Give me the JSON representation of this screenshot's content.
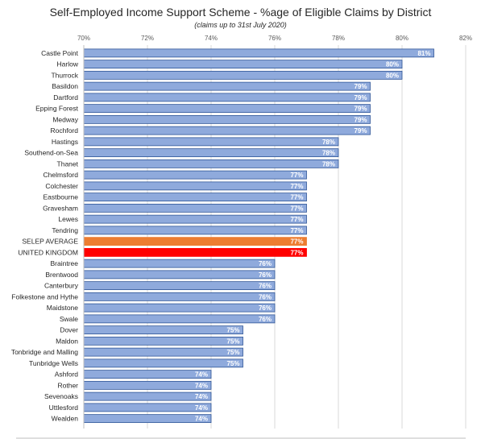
{
  "chart_data": {
    "type": "bar",
    "orientation": "horizontal",
    "title": "Self-Employed Income Support Scheme - %age of Eligible Claims by District",
    "subtitle": "(claims up to 31st July 2020)",
    "xlim": [
      70,
      82
    ],
    "xticks": [
      "70%",
      "72%",
      "74%",
      "76%",
      "78%",
      "80%",
      "82%"
    ],
    "grid": true,
    "legend": "none",
    "categories": [
      "Castle Point",
      "Harlow",
      "Thurrock",
      "Basildon",
      "Dartford",
      "Epping Forest",
      "Medway",
      "Rochford",
      "Hastings",
      "Southend-on-Sea",
      "Thanet",
      "Chelmsford",
      "Colchester",
      "Eastbourne",
      "Gravesham",
      "Lewes",
      "Tendring",
      "SELEP AVERAGE",
      "UNITED KINGDOM",
      "Braintree",
      "Brentwood",
      "Canterbury",
      "Folkestone and Hythe",
      "Maidstone",
      "Swale",
      "Dover",
      "Maldon",
      "Tonbridge and Malling",
      "Tunbridge Wells",
      "Ashford",
      "Rother",
      "Sevenoaks",
      "Uttlesford",
      "Wealden"
    ],
    "values": [
      81,
      80,
      80,
      79,
      79,
      79,
      79,
      79,
      78,
      78,
      78,
      77,
      77,
      77,
      77,
      77,
      77,
      77,
      77,
      76,
      76,
      76,
      76,
      76,
      76,
      75,
      75,
      75,
      75,
      74,
      74,
      74,
      74,
      74
    ],
    "labels": [
      "81%",
      "80%",
      "80%",
      "79%",
      "79%",
      "79%",
      "79%",
      "79%",
      "78%",
      "78%",
      "78%",
      "77%",
      "77%",
      "77%",
      "77%",
      "77%",
      "77%",
      "77%",
      "77%",
      "76%",
      "76%",
      "76%",
      "76%",
      "76%",
      "76%",
      "75%",
      "75%",
      "75%",
      "75%",
      "74%",
      "74%",
      "74%",
      "74%",
      "74%"
    ],
    "colors": {
      "default": "#8faadc",
      "default_border": "#2f5597",
      "SELEP AVERAGE": "#ed7d31",
      "UNITED KINGDOM": "#ff0000"
    }
  }
}
